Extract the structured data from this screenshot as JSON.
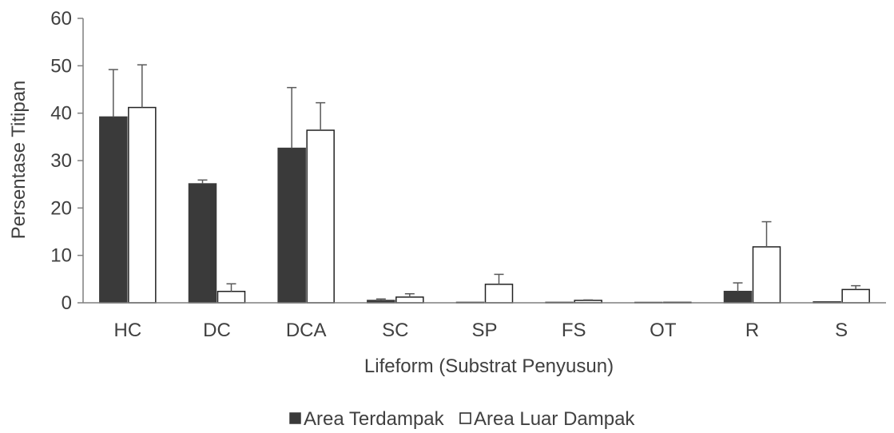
{
  "chart_data": {
    "type": "bar",
    "title": "",
    "xlabel": "Lifeform (Substrat Penyusun)",
    "ylabel": "Persentase Titipan",
    "ylim": [
      0,
      60
    ],
    "yticks": [
      0,
      10,
      20,
      30,
      40,
      50,
      60
    ],
    "grid": false,
    "legend_position": "bottom",
    "categories": [
      "HC",
      "DC",
      "DCA",
      "SC",
      "SP",
      "FS",
      "OT",
      "R",
      "S"
    ],
    "series": [
      {
        "name": "Area Terdampak",
        "color": "#3a3a3a",
        "values": [
          39.2,
          25.1,
          32.6,
          0.5,
          0.1,
          0.1,
          0.0,
          2.4,
          0.2
        ],
        "errors": [
          10.0,
          0.8,
          12.8,
          0.3,
          0.0,
          0.0,
          0.0,
          1.8,
          0.0
        ]
      },
      {
        "name": "Area Luar Dampak",
        "color": "#ffffff",
        "values": [
          41.2,
          2.4,
          36.4,
          1.2,
          3.9,
          0.5,
          0.1,
          11.8,
          2.8
        ],
        "errors": [
          9.0,
          1.6,
          5.8,
          0.7,
          2.1,
          0.1,
          0.0,
          5.3,
          0.8
        ]
      }
    ]
  }
}
